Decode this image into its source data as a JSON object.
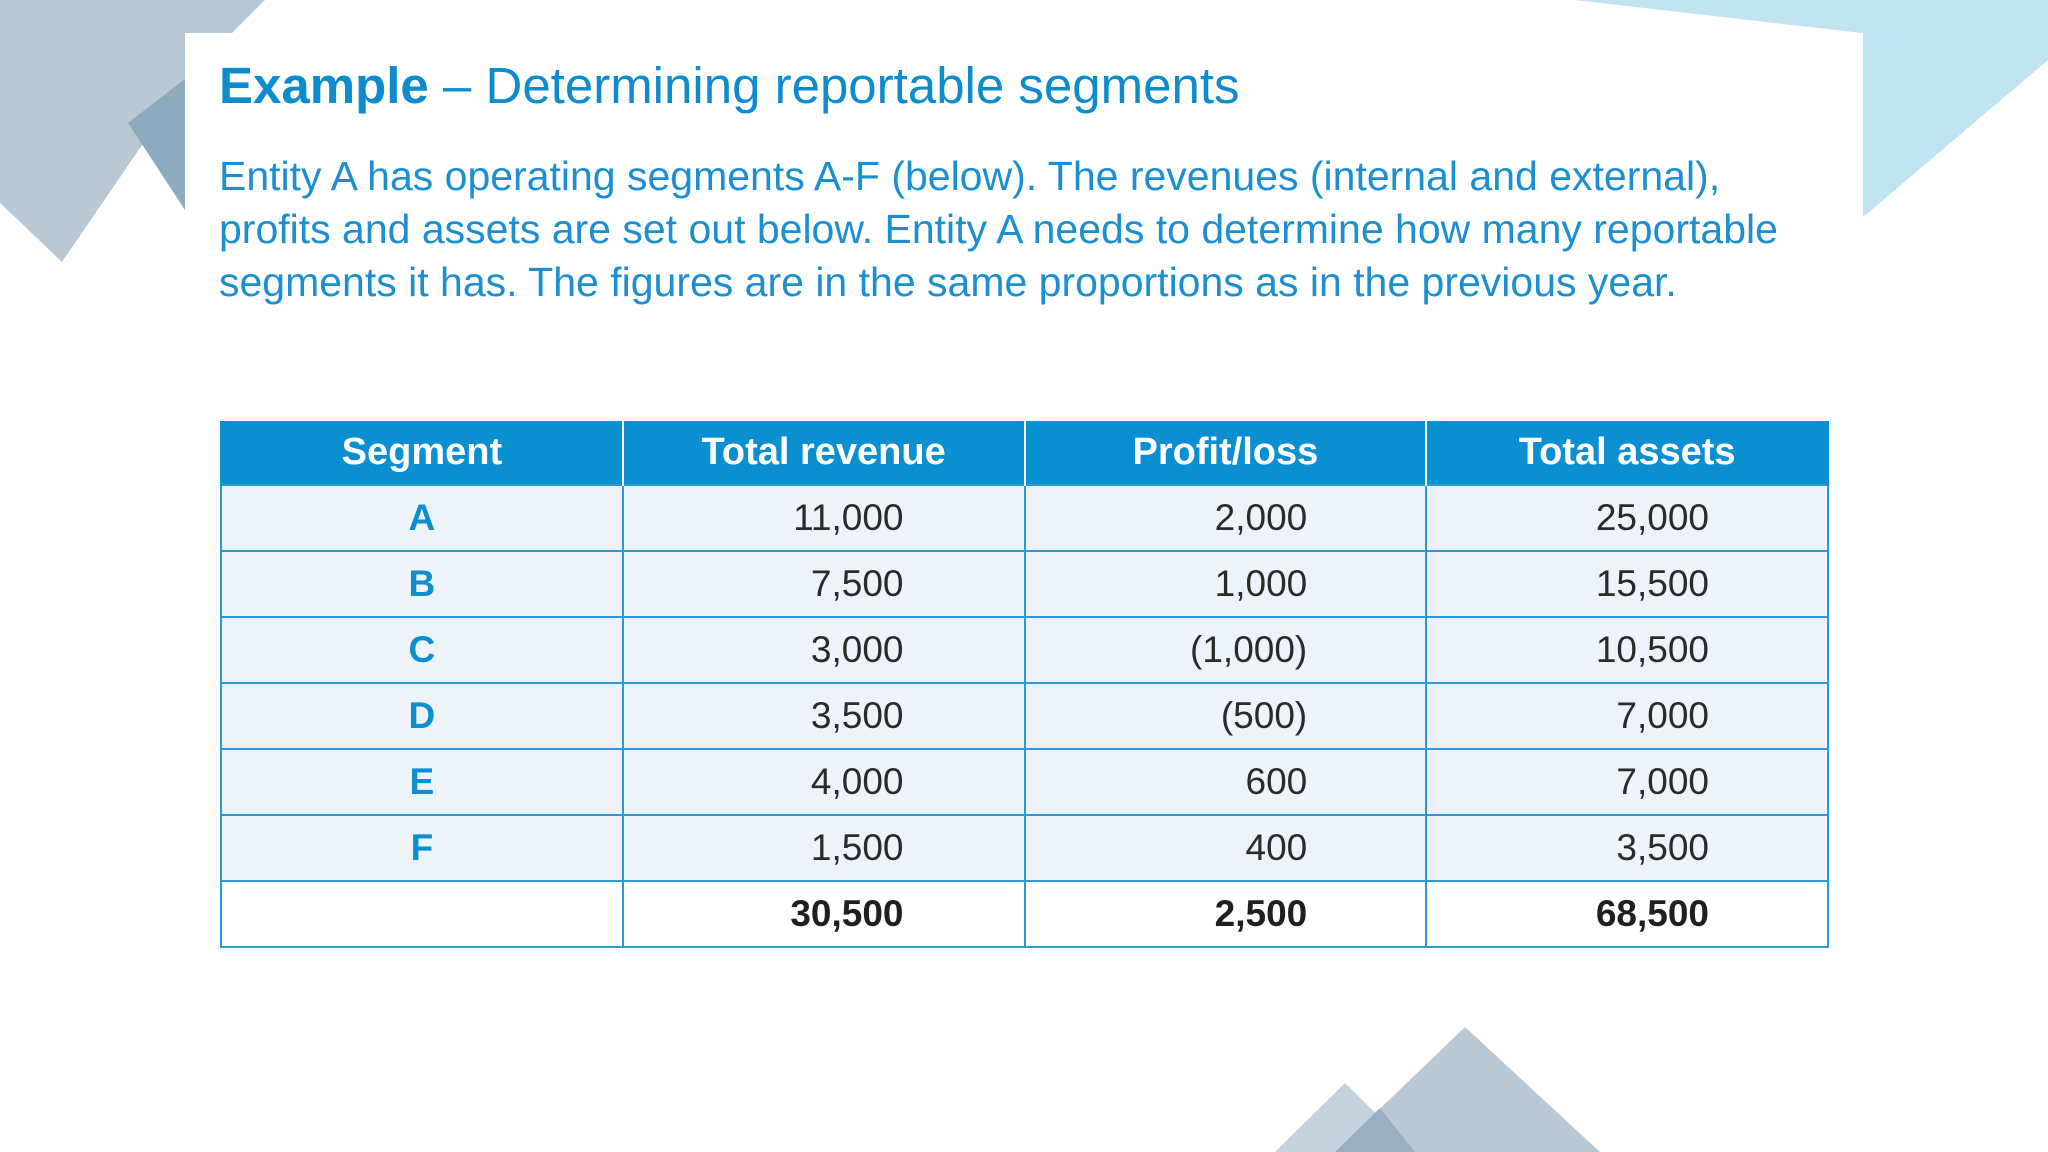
{
  "slide": {
    "title_bold": "Example",
    "title_rest": " – Determining reportable segments",
    "intro": "Entity A has operating segments A-F (below). The revenues (internal and external), profits and assets are set out below. Entity A needs to determine how many reportable segments it has. The figures are in the same proportions as in the previous year."
  },
  "table": {
    "headers": {
      "segment": "Segment",
      "total_revenue": "Total revenue",
      "profit_loss": "Profit/loss",
      "total_assets": "Total assets"
    },
    "rows": [
      {
        "segment": "A",
        "total_revenue": "11,000",
        "profit_loss": "2,000",
        "total_assets": "25,000"
      },
      {
        "segment": "B",
        "total_revenue": "7,500",
        "profit_loss": "1,000",
        "total_assets": "15,500"
      },
      {
        "segment": "C",
        "total_revenue": "3,000",
        "profit_loss": "(1,000)",
        "total_assets": "10,500"
      },
      {
        "segment": "D",
        "total_revenue": "3,500",
        "profit_loss": "(500)",
        "total_assets": "7,000"
      },
      {
        "segment": "E",
        "total_revenue": "4,000",
        "profit_loss": "600",
        "total_assets": "7,000"
      },
      {
        "segment": "F",
        "total_revenue": "1,500",
        "profit_loss": "400",
        "total_assets": "3,500"
      }
    ],
    "total": {
      "segment": "",
      "total_revenue": "30,500",
      "profit_loss": "2,500",
      "total_assets": "68,500"
    }
  },
  "colors": {
    "accent": "#0a8fd0",
    "row_fill": "#edf3f9",
    "decor_grey_blue": "#b8c9d5",
    "decor_light_blue": "#bfe3f1"
  }
}
